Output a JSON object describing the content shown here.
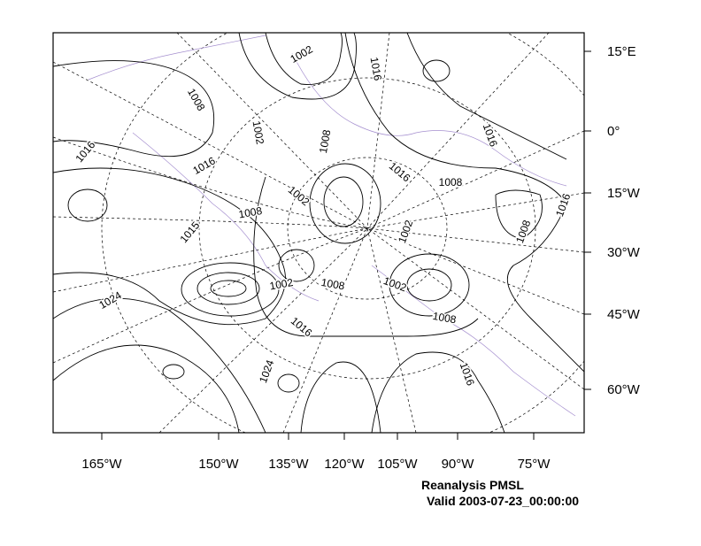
{
  "map": {
    "bottom_labels": [
      "165°W",
      "150°W",
      "135°W",
      "120°W",
      "105°W",
      "90°W",
      "75°W"
    ],
    "right_labels": [
      "15°E",
      "0°",
      "15°W",
      "30°W",
      "45°W",
      "60°W"
    ],
    "contour_labels": [
      "1002",
      "1016",
      "1008",
      "1002",
      "1016",
      "1016",
      "1008",
      "1016",
      "1008",
      "1016",
      "1002",
      "1008",
      "1015",
      "1002",
      "1016",
      "1008",
      "1002",
      "1008",
      "1002",
      "1024",
      "1008",
      "1016",
      "1024",
      "1016"
    ],
    "caption": [
      "Reanalysis PMSL",
      "Valid 2003-07-23_00:00:00"
    ]
  }
}
